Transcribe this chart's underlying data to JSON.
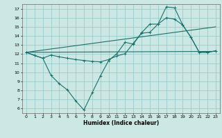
{
  "xlabel": "Humidex (Indice chaleur)",
  "background_color": "#cce8e4",
  "grid_color": "#99cccc",
  "line_color": "#1a6e6a",
  "xlim": [
    -0.5,
    23.5
  ],
  "ylim": [
    5.5,
    17.5
  ],
  "xticks": [
    0,
    1,
    2,
    3,
    4,
    5,
    6,
    7,
    8,
    9,
    10,
    11,
    12,
    13,
    14,
    15,
    16,
    17,
    18,
    19,
    20,
    21,
    22,
    23
  ],
  "yticks": [
    6,
    7,
    8,
    9,
    10,
    11,
    12,
    13,
    14,
    15,
    16,
    17
  ],
  "series_line": {
    "x": [
      0,
      23
    ],
    "y": [
      12.2,
      12.3
    ]
  },
  "series_line2": {
    "x": [
      0,
      23
    ],
    "y": [
      12.2,
      15.0
    ]
  },
  "series_zigzag": {
    "x": [
      0,
      1,
      2,
      3,
      4,
      5,
      6,
      7,
      8,
      9,
      10,
      11,
      12,
      13,
      14,
      15,
      16,
      17,
      18,
      19,
      20,
      21,
      22,
      23
    ],
    "y": [
      12.2,
      11.85,
      11.55,
      9.65,
      8.75,
      8.05,
      6.85,
      5.85,
      7.75,
      9.6,
      11.3,
      12.05,
      13.3,
      13.1,
      14.35,
      15.3,
      15.3,
      17.2,
      17.1,
      15.2,
      13.85,
      12.2,
      12.2,
      12.35
    ]
  },
  "series_smooth": {
    "x": [
      0,
      1,
      2,
      3,
      4,
      5,
      6,
      7,
      8,
      9,
      10,
      11,
      12,
      13,
      14,
      15,
      16,
      17,
      18,
      19,
      20,
      21,
      22,
      23
    ],
    "y": [
      12.2,
      11.85,
      11.55,
      11.9,
      11.7,
      11.55,
      11.4,
      11.3,
      11.2,
      11.15,
      11.4,
      11.8,
      12.05,
      13.2,
      14.3,
      14.4,
      15.3,
      16.0,
      15.85,
      15.2,
      13.85,
      12.2,
      12.2,
      12.35
    ]
  }
}
